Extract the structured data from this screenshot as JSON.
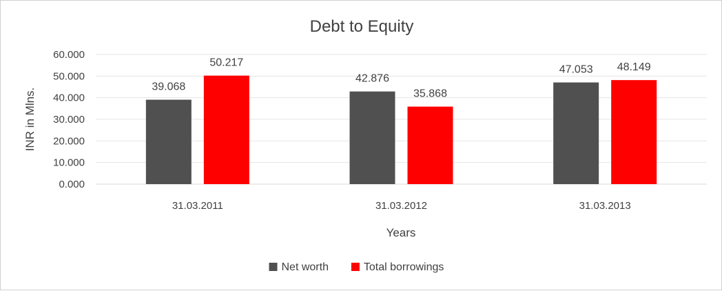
{
  "chart_data": {
    "type": "bar",
    "title": "Debt to Equity",
    "xlabel": "Years",
    "ylabel": "INR in Mlns.",
    "categories": [
      "31.03.2011",
      "31.03.2012",
      "31.03.2013"
    ],
    "series": [
      {
        "name": "Net worth",
        "color": "#505050",
        "values": [
          39.068,
          42.876,
          47.053
        ],
        "labels": [
          "39.068",
          "42.876",
          "47.053"
        ]
      },
      {
        "name": "Total borrowings",
        "color": "#ff0000",
        "values": [
          50.217,
          35.868,
          48.149
        ],
        "labels": [
          "50.217",
          "35.868",
          "48.149"
        ]
      }
    ],
    "ylim": [
      0,
      60
    ],
    "yticks": [
      0,
      10,
      20,
      30,
      40,
      50,
      60
    ],
    "ytick_labels": [
      "0.000",
      "10.000",
      "20.000",
      "30.000",
      "40.000",
      "50.000",
      "60.000"
    ],
    "grid": true,
    "legend": "bottom"
  }
}
